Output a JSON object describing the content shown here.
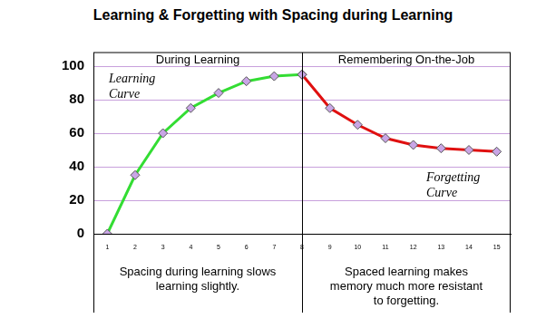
{
  "chart_data": {
    "type": "line",
    "title": "Learning & Forgetting with Spacing during Learning",
    "sections": [
      {
        "label": "During Learning",
        "note": "Spacing during learning slows learning slightly."
      },
      {
        "label": "Remembering On-the-Job",
        "note": "Spaced learning makes memory much more resistant to forgetting."
      }
    ],
    "categories": [
      "1",
      "2",
      "3",
      "4",
      "5",
      "6",
      "7",
      "8",
      "9",
      "10",
      "11",
      "12",
      "13",
      "14",
      "15"
    ],
    "series": [
      {
        "name": "Learning Curve",
        "color": "#33dd33",
        "values": [
          0,
          35,
          60,
          75,
          84,
          91,
          94,
          95,
          null,
          null,
          null,
          null,
          null,
          null,
          null
        ]
      },
      {
        "name": "Forgetting Curve",
        "color": "#e01010",
        "values": [
          null,
          null,
          null,
          null,
          null,
          null,
          null,
          95,
          75,
          65,
          57,
          53,
          51,
          50,
          49
        ]
      }
    ],
    "ylim": [
      0,
      100
    ],
    "yticks": [
      0,
      20,
      40,
      60,
      80,
      100
    ],
    "grid": true,
    "marker": "diamond"
  }
}
